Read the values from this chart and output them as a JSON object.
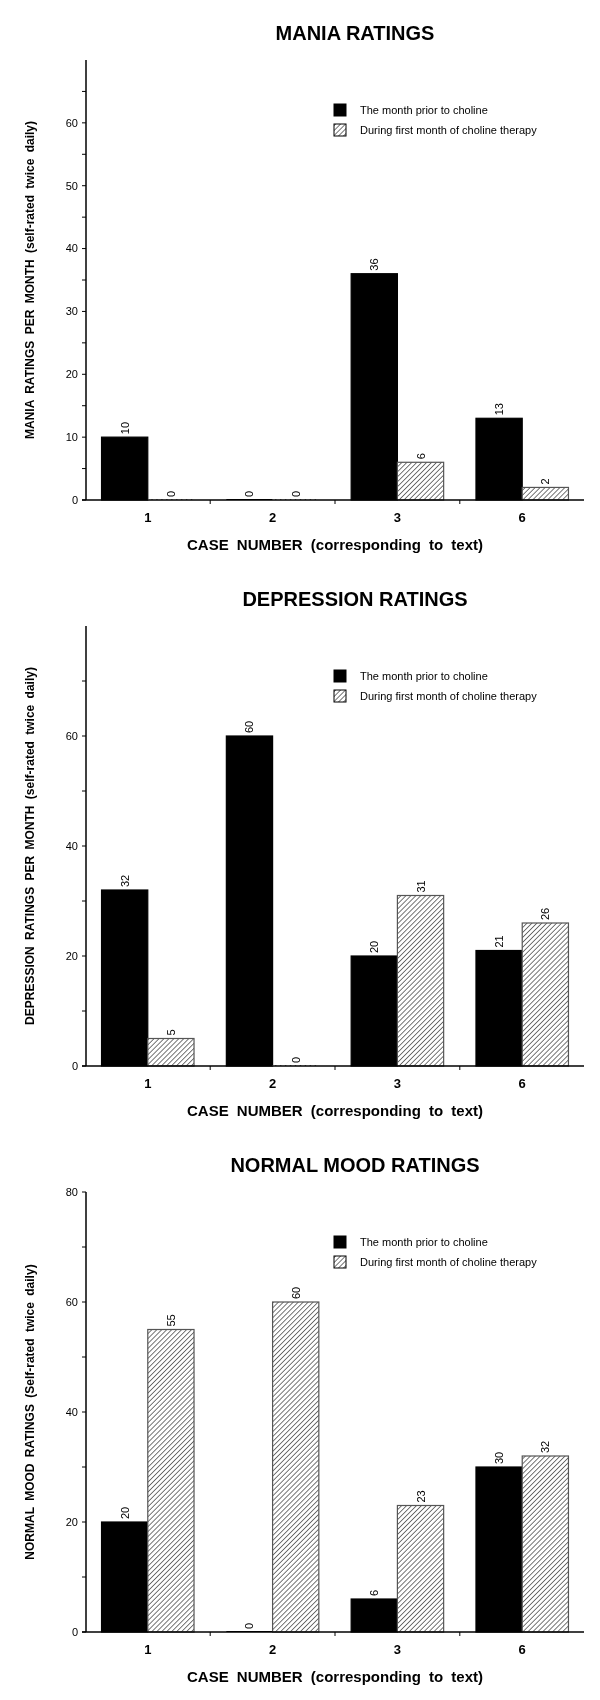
{
  "chart_data": [
    {
      "type": "bar",
      "title": "MANIA RATINGS",
      "xlabel": "CASE NUMBER (corresponding to text)",
      "ylabel": "MANIA RATINGS PER MONTH (self-rated twice daily)",
      "categories": [
        "1",
        "2",
        "3",
        "6"
      ],
      "series": [
        {
          "name": "The month prior to choline",
          "color": "#000000",
          "values": [
            10,
            0,
            36,
            13
          ]
        },
        {
          "name": "During first month of choline therapy",
          "color": "#555555",
          "values": [
            0,
            0,
            6,
            2
          ]
        }
      ],
      "ylim": [
        0,
        70
      ],
      "yticks": [
        0,
        {
          "value": 5,
          "label": null
        },
        10,
        {
          "value": 15,
          "label": null
        },
        20,
        {
          "value": 25,
          "label": null
        },
        30,
        {
          "value": 35,
          "label": null
        },
        40,
        {
          "value": 45,
          "label": null
        },
        50,
        {
          "value": 55,
          "label": null
        },
        60,
        {
          "value": 65,
          "label": null
        }
      ],
      "data_labels": true,
      "legend": "top right",
      "grid": false
    },
    {
      "type": "bar",
      "title": "DEPRESSION RATINGS",
      "xlabel": "CASE NUMBER (corresponding to text)",
      "ylabel": "DEPRESSION RATINGS PER MONTH (self-rated twice daily)",
      "categories": [
        "1",
        "2",
        "3",
        "6"
      ],
      "series": [
        {
          "name": "The month prior to choline",
          "color": "#000000",
          "values": [
            32,
            60,
            20,
            21
          ]
        },
        {
          "name": "During first month of choline therapy",
          "color": "#555555",
          "values": [
            5,
            0,
            31,
            26
          ]
        }
      ],
      "ylim": [
        0,
        80
      ],
      "yticks": [
        0,
        {
          "value": 10,
          "label": null
        },
        20,
        {
          "value": 30,
          "label": null
        },
        40,
        {
          "value": 50,
          "label": null
        },
        60,
        {
          "value": 70,
          "label": null
        }
      ],
      "data_labels": true,
      "legend": "top right",
      "grid": false
    },
    {
      "type": "bar",
      "title": "NORMAL MOOD RATINGS",
      "xlabel": "CASE NUMBER (corresponding to text)",
      "ylabel": "NORMAL MOOD RATINGS (Self-rated twice daily)",
      "categories": [
        "1",
        "2",
        "3",
        "6"
      ],
      "series": [
        {
          "name": "The month prior to choline",
          "color": "#000000",
          "values": [
            20,
            0,
            6,
            30
          ]
        },
        {
          "name": "During first month of choline therapy",
          "color": "#555555",
          "values": [
            55,
            60,
            23,
            32
          ]
        }
      ],
      "ylim": [
        0,
        80
      ],
      "yticks": [
        0,
        {
          "value": 10,
          "label": null
        },
        20,
        {
          "value": 30,
          "label": null
        },
        40,
        {
          "value": 50,
          "label": null
        },
        60,
        {
          "value": 70,
          "label": null
        },
        80
      ],
      "data_labels": true,
      "legend": "top right",
      "grid": false
    }
  ]
}
